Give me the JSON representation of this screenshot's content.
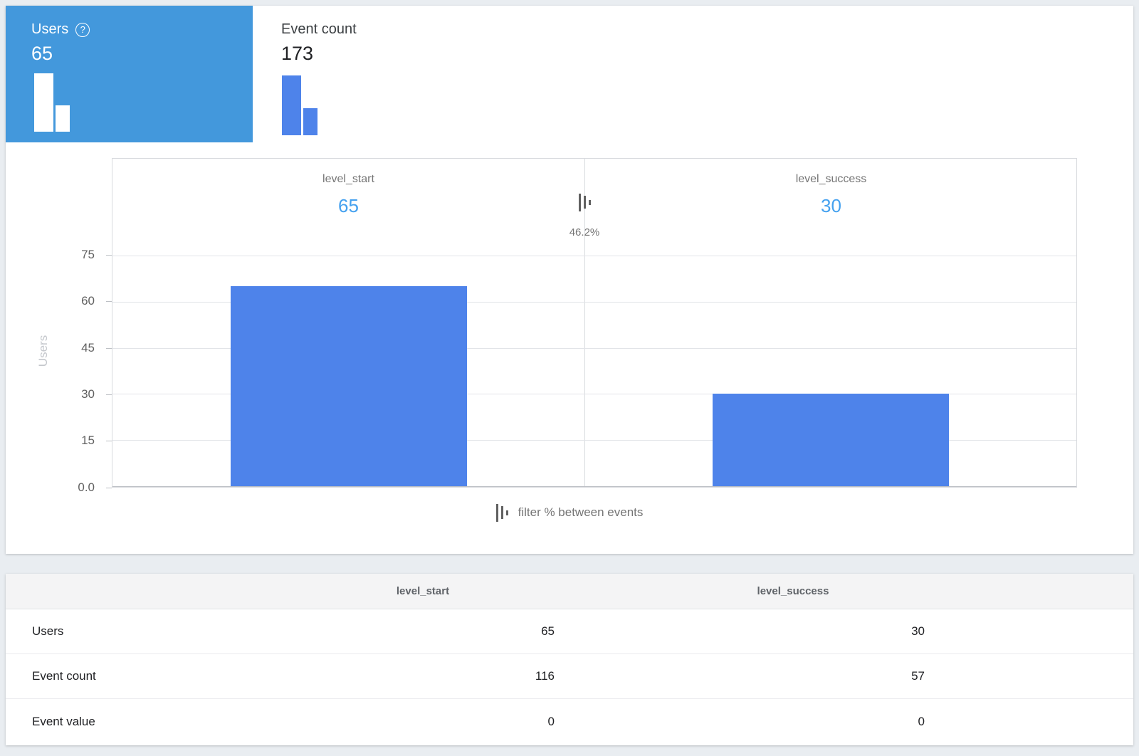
{
  "metrics": [
    {
      "label": "Users",
      "value": "65",
      "selected": true
    },
    {
      "label": "Event count",
      "value": "173",
      "selected": false
    }
  ],
  "icons": {
    "help_glyph": "?"
  },
  "chart_data": {
    "type": "bar",
    "categories": [
      "level_start",
      "level_success"
    ],
    "values": [
      65,
      30
    ],
    "values_display": [
      "65",
      "30"
    ],
    "between_percentage": "46.2%",
    "title": "",
    "xlabel": "",
    "ylabel": "Users",
    "ylim": [
      0,
      75
    ],
    "yticks": [
      "75",
      "60",
      "45",
      "30",
      "15",
      "0.0"
    ],
    "grid": true,
    "bar_color": "#4e83ea"
  },
  "legend": {
    "filter_label": "filter % between events"
  },
  "table": {
    "columns": [
      "level_start",
      "level_success"
    ],
    "rows": [
      {
        "label": "Users",
        "values": [
          "65",
          "30"
        ]
      },
      {
        "label": "Event count",
        "values": [
          "116",
          "57"
        ]
      },
      {
        "label": "Event value",
        "values": [
          "0",
          "0"
        ]
      }
    ]
  },
  "colors": {
    "selected_card_bg": "#4398dc",
    "bar_blue": "#4e83ea",
    "step_value_blue": "#45a1ef"
  }
}
